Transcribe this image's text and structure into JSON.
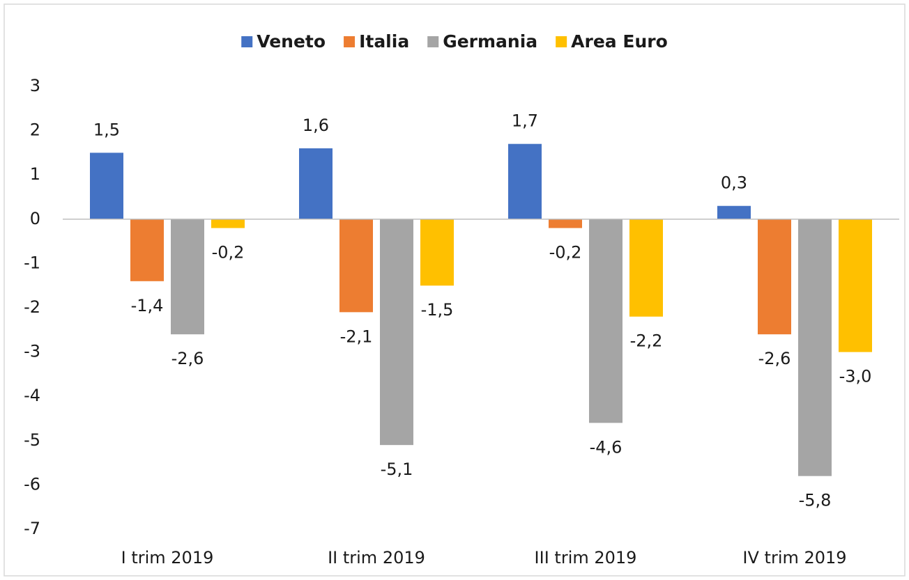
{
  "chart_data": {
    "type": "bar",
    "categories": [
      "I trim 2019",
      "II trim 2019",
      "III trim 2019",
      "IV trim 2019"
    ],
    "series": [
      {
        "name": "Veneto",
        "color": "#4472c4",
        "values": [
          1.5,
          1.6,
          1.7,
          0.3
        ],
        "value_labels": [
          "1,5",
          "1,6",
          "1,7",
          "0,3"
        ]
      },
      {
        "name": "Italia",
        "color": "#ed7d31",
        "values": [
          -1.4,
          -2.1,
          -0.2,
          -2.6
        ],
        "value_labels": [
          "-1,4",
          "-2,1",
          "-0,2",
          "-2,6"
        ]
      },
      {
        "name": "Germania",
        "color": "#a5a5a5",
        "values": [
          -2.6,
          -5.1,
          -4.6,
          -5.8
        ],
        "value_labels": [
          "-2,6",
          "-5,1",
          "-4,6",
          "-5,8"
        ]
      },
      {
        "name": "Area Euro",
        "color": "#ffc000",
        "values": [
          -0.2,
          -1.5,
          -2.2,
          -3.0
        ],
        "value_labels": [
          "-0,2",
          "-1,5",
          "-2,2",
          "-3,0"
        ]
      }
    ],
    "ylim": [
      -7,
      3
    ],
    "yticks": [
      3,
      2,
      1,
      0,
      -1,
      -2,
      -3,
      -4,
      -5,
      -6,
      -7
    ],
    "legend": "top"
  }
}
